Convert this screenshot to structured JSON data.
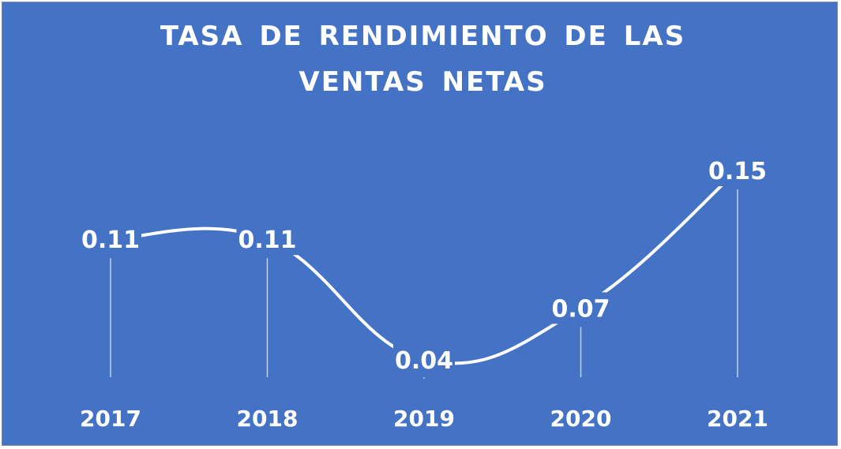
{
  "colors": {
    "background": "#4472C4",
    "line": "#ffffff",
    "text": "#ffffff"
  },
  "chart_data": {
    "type": "line",
    "title_lines": [
      "TASA DE RENDIMIENTO  DE LAS",
      "VENTAS  NETAS"
    ],
    "categories": [
      "2017",
      "2018",
      "2019",
      "2020",
      "2021"
    ],
    "values": [
      0.11,
      0.11,
      0.04,
      0.07,
      0.15
    ],
    "data_labels": [
      "0.11",
      "0.11",
      "0.04",
      "0.07",
      "0.15"
    ],
    "smooth": true,
    "grid": false,
    "legend": "none",
    "drop_lines": true
  }
}
